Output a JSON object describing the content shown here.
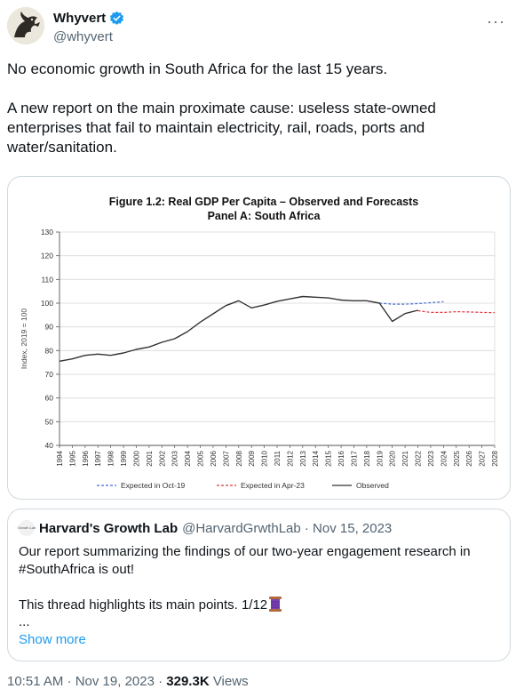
{
  "author": {
    "name": "Whyvert",
    "handle": "@whyvert"
  },
  "tweet": {
    "paragraph1": "No economic growth in South Africa for the last 15 years.",
    "paragraph2": "A new report on the main proximate cause: useless state-owned enterprises that fail to maintain electricity, rail, roads, ports and water/sanitation."
  },
  "chart_data": {
    "type": "line",
    "title": "Figure 1.2: Real GDP Per Capita – Observed and Forecasts",
    "subtitle": "Panel A: South Africa",
    "xlabel": "",
    "ylabel": "Index, 2019 = 100",
    "ylim": [
      40,
      130
    ],
    "yticks": [
      40,
      50,
      60,
      70,
      80,
      90,
      100,
      110,
      120,
      130
    ],
    "xlim": [
      1994,
      2028
    ],
    "xticks": [
      "1994",
      "1995",
      "1996",
      "1997",
      "1998",
      "1999",
      "2000",
      "2001",
      "2002",
      "2003",
      "2004",
      "2005",
      "2006",
      "2007",
      "2008",
      "2009",
      "2010",
      "2011",
      "2012",
      "2013",
      "2014",
      "2015",
      "2016",
      "2017",
      "2018",
      "2019",
      "2020",
      "2021",
      "2022",
      "2023",
      "2024",
      "2025",
      "2026",
      "2027",
      "2028"
    ],
    "grid": "horizontal",
    "legend_position": "bottom",
    "series": [
      {
        "name": "Expected in Oct-19",
        "style": "dashed",
        "color": "#4a6fd4",
        "x": [
          2019,
          2020,
          2021,
          2022,
          2023,
          2024
        ],
        "values": [
          100,
          99.6,
          99.6,
          99.8,
          100.2,
          100.6
        ]
      },
      {
        "name": "Expected in Apr-23",
        "style": "dashed",
        "color": "#e0343c",
        "x": [
          2022,
          2023,
          2024,
          2025,
          2026,
          2027,
          2028
        ],
        "values": [
          96.8,
          96.1,
          96.1,
          96.4,
          96.3,
          96.1,
          96.0
        ]
      },
      {
        "name": "Observed",
        "style": "solid",
        "color": "#333333",
        "x": [
          1994,
          1995,
          1996,
          1997,
          1998,
          1999,
          2000,
          2001,
          2002,
          2003,
          2004,
          2005,
          2006,
          2007,
          2008,
          2009,
          2010,
          2011,
          2012,
          2013,
          2014,
          2015,
          2016,
          2017,
          2018,
          2019,
          2020,
          2021,
          2022
        ],
        "values": [
          75.5,
          76.5,
          78.0,
          78.5,
          78.0,
          79.0,
          80.5,
          81.5,
          83.5,
          85.0,
          88.0,
          92.0,
          95.5,
          99.0,
          101.0,
          98.0,
          99.2,
          100.8,
          101.8,
          102.8,
          102.5,
          102.2,
          101.3,
          101.0,
          101.0,
          100.0,
          92.3,
          95.6,
          97.0
        ]
      }
    ]
  },
  "quote": {
    "avatar_text": "Growth Lab",
    "name": "Harvard's Growth Lab",
    "meta": "@HarvardGrwthLab · Nov 15, 2023",
    "body1": "Our report summarizing the findings of our two-year engagement research in #SouthAfrica is out!",
    "body2": "This thread highlights its main points. 1/12",
    "ellipsis": "...",
    "show_more": "Show more"
  },
  "footer": {
    "time": "10:51 AM · Nov 19, 2023 · ",
    "views_count": "329.3K",
    "views_label": " Views"
  },
  "colors": {
    "accent": "#1d9bf0",
    "text": "#0f1419",
    "muted": "#536471"
  }
}
